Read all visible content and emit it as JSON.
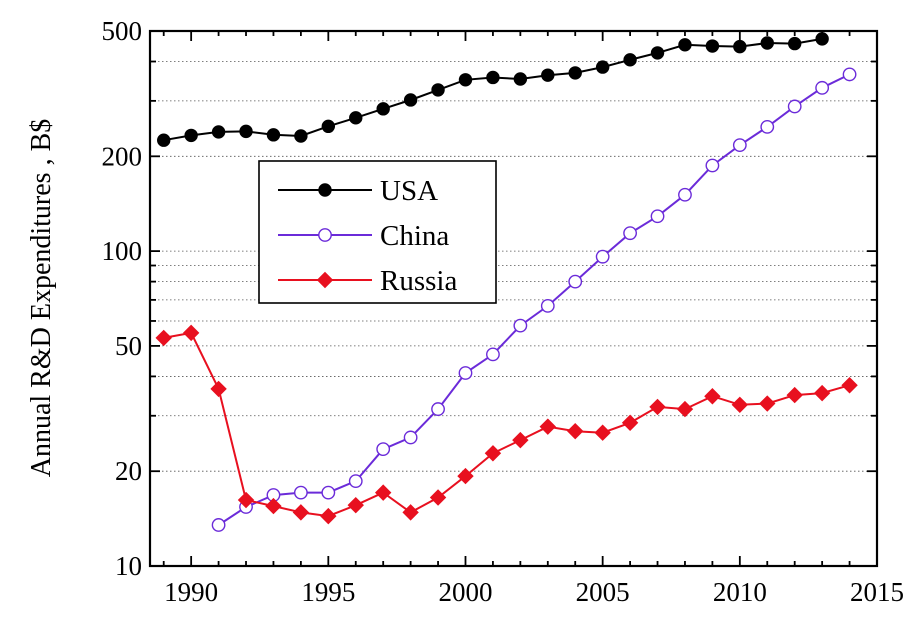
{
  "chart_data": {
    "type": "line",
    "title": "",
    "xlabel": "",
    "ylabel": "Annual R&D Expenditures , B$",
    "yscale": "log",
    "xlim": [
      1988.5,
      2015
    ],
    "ylim": [
      10,
      500
    ],
    "xticks": [
      1990,
      1995,
      2000,
      2005,
      2010,
      2015
    ],
    "yticks": [
      10,
      20,
      50,
      100,
      200,
      500
    ],
    "grid": "horizontal-dotted",
    "legend": "upper-left",
    "series": [
      {
        "name": "USA",
        "color": "#000000",
        "marker": "filled-circle",
        "x": [
          1989,
          1990,
          1991,
          1992,
          1993,
          1994,
          1995,
          1996,
          1997,
          1998,
          1999,
          2000,
          2001,
          2002,
          2003,
          2004,
          2005,
          2006,
          2007,
          2008,
          2009,
          2010,
          2011,
          2012,
          2013
        ],
        "y": [
          225,
          233,
          239,
          240,
          234,
          232,
          249,
          265,
          283,
          302,
          325,
          350,
          356,
          352,
          362,
          368,
          384,
          405,
          426,
          452,
          448,
          446,
          458,
          456,
          472
        ]
      },
      {
        "name": "China",
        "color": "#6b2bd9",
        "marker": "open-circle",
        "x": [
          1991,
          1992,
          1993,
          1994,
          1995,
          1996,
          1997,
          1998,
          1999,
          2000,
          2001,
          2002,
          2003,
          2004,
          2005,
          2006,
          2007,
          2008,
          2009,
          2010,
          2011,
          2012,
          2013,
          2014
        ],
        "y": [
          13.5,
          15.4,
          16.8,
          17.1,
          17.1,
          18.6,
          23.5,
          25.6,
          31.5,
          41,
          47,
          58,
          67,
          80,
          96,
          114,
          129,
          151,
          187,
          217,
          248,
          288,
          330,
          364
        ]
      },
      {
        "name": "Russia",
        "color": "#e8101f",
        "marker": "filled-diamond",
        "x": [
          1989,
          1990,
          1991,
          1992,
          1993,
          1994,
          1995,
          1996,
          1997,
          1998,
          1999,
          2000,
          2001,
          2002,
          2003,
          2004,
          2005,
          2006,
          2007,
          2008,
          2009,
          2010,
          2011,
          2012,
          2013,
          2014
        ],
        "y": [
          53,
          55,
          36.5,
          16.2,
          15.5,
          14.8,
          14.4,
          15.6,
          17.1,
          14.8,
          16.5,
          19.3,
          22.8,
          25.1,
          27.7,
          26.8,
          26.5,
          28.5,
          32,
          31.5,
          34.6,
          32.5,
          32.8,
          34.9,
          35.4,
          37.5
        ]
      }
    ]
  }
}
